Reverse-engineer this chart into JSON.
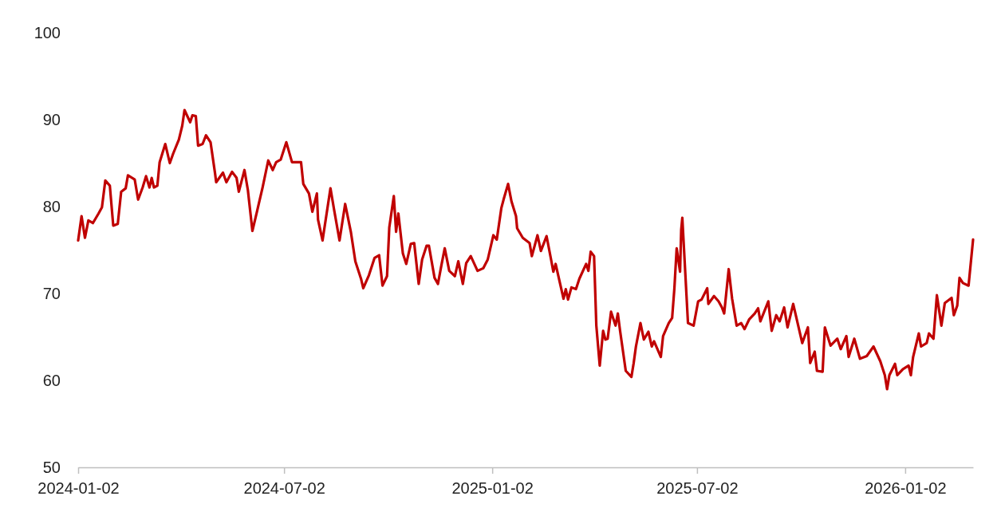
{
  "chart_data": {
    "type": "line",
    "xlim": [
      "2024-01-02",
      "2026-03-03"
    ],
    "xticks": [
      "2024-01-02",
      "2024-07-02",
      "2025-01-02",
      "2025-07-02",
      "2026-01-02"
    ],
    "ylim": [
      50,
      100
    ],
    "yticks": [
      50,
      60,
      70,
      80,
      90,
      100
    ],
    "grid": false,
    "marker": "none",
    "line_style": "solid",
    "series": [
      {
        "color": "#c00000",
        "x": [
          "2024-01-02",
          "2024-01-05",
          "2024-01-08",
          "2024-01-11",
          "2024-01-15",
          "2024-01-20",
          "2024-01-23",
          "2024-01-26",
          "2024-01-30",
          "2024-02-02",
          "2024-02-06",
          "2024-02-09",
          "2024-02-13",
          "2024-02-15",
          "2024-02-21",
          "2024-02-24",
          "2024-02-28",
          "2024-03-02",
          "2024-03-05",
          "2024-03-07",
          "2024-03-09",
          "2024-03-12",
          "2024-03-14",
          "2024-03-19",
          "2024-03-23",
          "2024-03-26",
          "2024-03-31",
          "2024-04-03",
          "2024-04-05",
          "2024-04-10",
          "2024-04-12",
          "2024-04-15",
          "2024-04-17",
          "2024-04-21",
          "2024-04-24",
          "2024-04-28",
          "2024-05-02",
          "2024-05-03",
          "2024-05-09",
          "2024-05-12",
          "2024-05-17",
          "2024-05-21",
          "2024-05-23",
          "2024-05-28",
          "2024-05-31",
          "2024-06-04",
          "2024-06-08",
          "2024-06-13",
          "2024-06-18",
          "2024-06-22",
          "2024-06-25",
          "2024-06-29",
          "2024-07-04",
          "2024-07-09",
          "2024-07-17",
          "2024-07-19",
          "2024-07-24",
          "2024-07-27",
          "2024-07-31",
          "2024-08-01",
          "2024-08-05",
          "2024-08-12",
          "2024-08-15",
          "2024-08-20",
          "2024-08-25",
          "2024-08-30",
          "2024-09-03",
          "2024-09-08",
          "2024-09-10",
          "2024-09-15",
          "2024-09-20",
          "2024-09-24",
          "2024-09-27",
          "2024-10-01",
          "2024-10-03",
          "2024-10-07",
          "2024-10-09",
          "2024-10-11",
          "2024-10-15",
          "2024-10-18",
          "2024-10-22",
          "2024-10-25",
          "2024-10-29",
          "2024-11-01",
          "2024-11-05",
          "2024-11-07",
          "2024-11-12",
          "2024-11-15",
          "2024-11-18",
          "2024-11-21",
          "2024-11-25",
          "2024-11-30",
          "2024-12-03",
          "2024-12-07",
          "2024-12-10",
          "2024-12-14",
          "2024-12-20",
          "2024-12-25",
          "2024-12-29",
          "2025-01-03",
          "2025-01-06",
          "2025-01-10",
          "2025-01-12",
          "2025-01-16",
          "2025-01-19",
          "2025-01-23",
          "2025-01-24",
          "2025-01-29",
          "2025-02-04",
          "2025-02-06",
          "2025-02-11",
          "2025-02-14",
          "2025-02-19",
          "2025-02-23",
          "2025-02-25",
          "2025-02-27",
          "2025-03-06",
          "2025-03-08",
          "2025-03-10",
          "2025-03-13",
          "2025-03-17",
          "2025-03-20",
          "2025-03-26",
          "2025-03-28",
          "2025-03-30",
          "2025-04-02",
          "2025-04-04",
          "2025-04-07",
          "2025-04-10",
          "2025-04-12",
          "2025-04-14",
          "2025-04-17",
          "2025-04-21",
          "2025-04-23",
          "2025-04-25",
          "2025-04-30",
          "2025-05-05",
          "2025-05-07",
          "2025-05-09",
          "2025-05-13",
          "2025-05-16",
          "2025-05-20",
          "2025-05-23",
          "2025-05-25",
          "2025-05-31",
          "2025-06-02",
          "2025-06-07",
          "2025-06-10",
          "2025-06-12",
          "2025-06-14",
          "2025-06-17",
          "2025-06-18",
          "2025-06-19",
          "2025-06-24",
          "2025-06-29",
          "2025-07-03",
          "2025-07-06",
          "2025-07-11",
          "2025-07-12",
          "2025-07-17",
          "2025-07-21",
          "2025-07-24",
          "2025-07-26",
          "2025-07-30",
          "2025-08-02",
          "2025-08-06",
          "2025-08-10",
          "2025-08-13",
          "2025-08-17",
          "2025-08-22",
          "2025-08-25",
          "2025-08-27",
          "2025-09-03",
          "2025-09-06",
          "2025-09-10",
          "2025-09-13",
          "2025-09-17",
          "2025-09-20",
          "2025-09-25",
          "2025-10-03",
          "2025-10-08",
          "2025-10-10",
          "2025-10-14",
          "2025-10-16",
          "2025-10-21",
          "2025-10-23",
          "2025-10-28",
          "2025-11-03",
          "2025-11-06",
          "2025-11-11",
          "2025-11-13",
          "2025-11-18",
          "2025-11-23",
          "2025-11-29",
          "2025-12-05",
          "2025-12-11",
          "2025-12-15",
          "2025-12-17",
          "2025-12-19",
          "2025-12-24",
          "2025-12-26",
          "2025-12-31",
          "2026-01-05",
          "2026-01-07",
          "2026-01-09",
          "2026-01-14",
          "2026-01-16",
          "2026-01-21",
          "2026-01-23",
          "2026-01-27",
          "2026-01-30",
          "2026-02-03",
          "2026-02-06",
          "2026-02-12",
          "2026-02-14",
          "2026-02-17",
          "2026-02-19",
          "2026-02-22",
          "2026-02-27",
          "2026-03-03"
        ],
        "values": [
          76.1,
          78.9,
          76.4,
          78.4,
          78.1,
          79.2,
          79.9,
          83.0,
          82.4,
          77.8,
          78.0,
          81.7,
          82.1,
          83.6,
          83.1,
          80.8,
          82.2,
          83.5,
          82.2,
          83.3,
          82.2,
          82.4,
          85.1,
          87.2,
          85.0,
          86.1,
          87.7,
          89.3,
          91.1,
          89.7,
          90.5,
          90.4,
          87.0,
          87.2,
          88.2,
          87.4,
          83.8,
          82.8,
          83.9,
          82.8,
          84.0,
          83.3,
          81.7,
          84.2,
          81.9,
          77.2,
          79.4,
          82.2,
          85.3,
          84.2,
          85.1,
          85.4,
          87.4,
          85.1,
          85.1,
          82.6,
          81.5,
          79.4,
          81.5,
          78.5,
          76.1,
          82.1,
          79.8,
          76.1,
          80.3,
          77.1,
          73.7,
          71.7,
          70.6,
          72.1,
          74.1,
          74.4,
          70.9,
          72.0,
          77.6,
          81.2,
          77.1,
          79.2,
          74.6,
          73.4,
          75.7,
          75.8,
          71.1,
          73.9,
          75.5,
          75.5,
          71.8,
          71.1,
          73.2,
          75.2,
          72.6,
          72.0,
          73.7,
          71.1,
          73.5,
          74.3,
          72.6,
          72.9,
          73.9,
          76.7,
          76.2,
          79.8,
          80.8,
          82.6,
          80.6,
          78.9,
          77.5,
          76.4,
          75.8,
          74.3,
          76.7,
          74.9,
          76.6,
          73.9,
          72.5,
          73.4,
          69.4,
          70.5,
          69.3,
          70.7,
          70.5,
          71.7,
          73.4,
          72.6,
          74.8,
          74.3,
          66.3,
          61.7,
          65.7,
          64.7,
          64.8,
          67.9,
          66.3,
          67.7,
          65.7,
          61.1,
          60.4,
          62.0,
          63.9,
          66.6,
          64.7,
          65.6,
          63.9,
          64.5,
          62.7,
          65.1,
          66.6,
          67.2,
          70.6,
          75.2,
          72.5,
          77.3,
          78.7,
          66.6,
          66.3,
          69.1,
          69.3,
          70.6,
          68.8,
          69.7,
          69.1,
          68.4,
          67.7,
          72.8,
          69.4,
          66.3,
          66.6,
          65.9,
          67.0,
          67.7,
          68.3,
          66.8,
          69.1,
          65.7,
          67.5,
          66.8,
          68.4,
          66.1,
          68.8,
          64.3,
          66.1,
          62.0,
          63.3,
          61.1,
          61.0,
          66.1,
          64.0,
          64.8,
          63.6,
          65.1,
          62.7,
          64.8,
          62.5,
          62.8,
          63.9,
          62.2,
          60.6,
          59.0,
          60.6,
          61.9,
          60.6,
          61.3,
          61.7,
          60.6,
          62.7,
          65.4,
          63.9,
          64.3,
          65.4,
          64.8,
          69.8,
          66.3,
          68.9,
          69.5,
          67.5,
          68.6,
          71.8,
          71.2,
          70.9,
          76.2
        ]
      }
    ]
  }
}
